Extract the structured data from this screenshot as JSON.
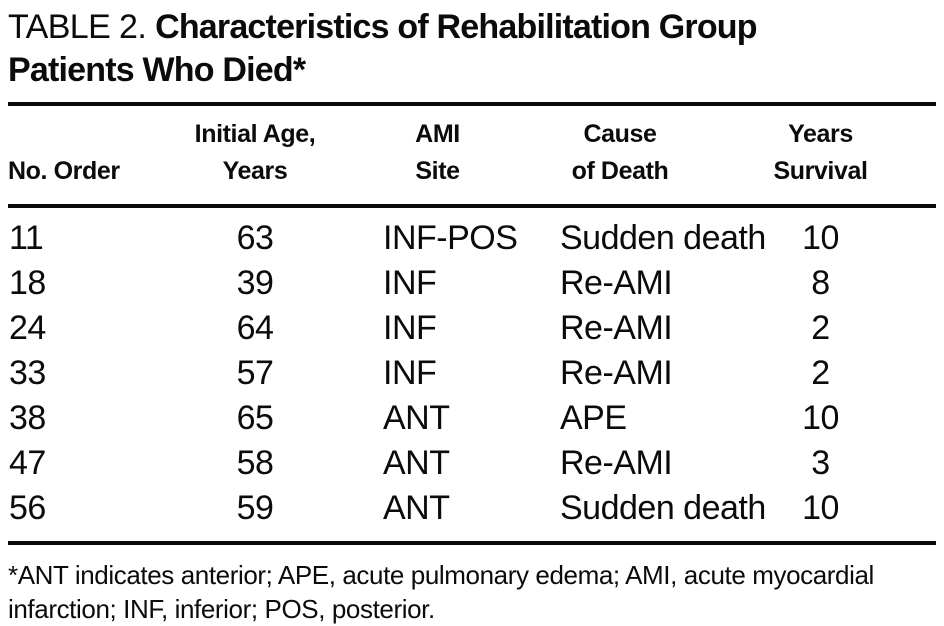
{
  "title": {
    "label": "TABLE 2.",
    "rest_line1": "Characteristics of Rehabilitation Group",
    "rest_line2": "Patients Who Died*"
  },
  "table": {
    "columns": [
      {
        "id": "no_order",
        "line1": "",
        "line2": "No. Order"
      },
      {
        "id": "initial_age",
        "line1": "Initial Age,",
        "line2": "Years"
      },
      {
        "id": "ami_site",
        "line1": "AMI",
        "line2": "Site"
      },
      {
        "id": "cause_of_death",
        "line1": "Cause",
        "line2": "of Death"
      },
      {
        "id": "years_survival",
        "line1": "Years",
        "line2": "Survival"
      }
    ],
    "rows": [
      [
        "11",
        "63",
        "INF-POS",
        "Sudden death",
        "10"
      ],
      [
        "18",
        "39",
        "INF",
        "Re-AMI",
        "8"
      ],
      [
        "24",
        "64",
        "INF",
        "Re-AMI",
        "2"
      ],
      [
        "33",
        "57",
        "INF",
        "Re-AMI",
        "2"
      ],
      [
        "38",
        "65",
        "ANT",
        "APE",
        "10"
      ],
      [
        "47",
        "58",
        "ANT",
        "Re-AMI",
        "3"
      ],
      [
        "56",
        "59",
        "ANT",
        "Sudden death",
        "10"
      ]
    ]
  },
  "footnote": {
    "line1": "*ANT indicates anterior; APE, acute pulmonary edema; AMI, acute myocardial",
    "line2": "infarction; INF, inferior; POS, posterior."
  },
  "colors": {
    "text": "#0b0b0b",
    "background": "#ffffff",
    "rule": "#0b0b0b"
  }
}
